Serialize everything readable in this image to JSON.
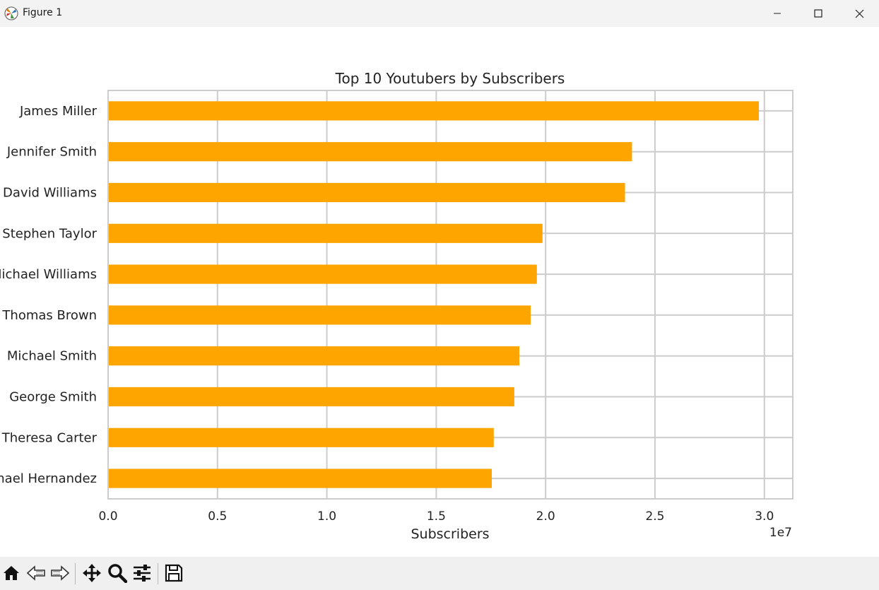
{
  "window": {
    "title": "Figure 1"
  },
  "toolbar": {
    "buttons": [
      "home-icon",
      "back-arrow-icon",
      "forward-arrow-icon",
      "pan-icon",
      "zoom-icon",
      "configure-subplots-icon",
      "save-icon"
    ]
  },
  "colors": {
    "bar": "#ffa500",
    "grid": "#cccccc",
    "spine": "#cccccc"
  },
  "chart_data": {
    "type": "bar",
    "orientation": "horizontal",
    "title": "Top 10 Youtubers by Subscribers",
    "xlabel": "Subscribers",
    "ylabel": "",
    "x_offset_label": "1e7",
    "categories": [
      "James Miller",
      "Jennifer Smith",
      "David Williams",
      "Stephen Taylor",
      "Michael Williams",
      "Thomas Brown",
      "Michael Smith",
      "George Smith",
      "Theresa Carter",
      "Michael Hernandez"
    ],
    "values": [
      29750000,
      23950000,
      23630000,
      19860000,
      19600000,
      19320000,
      18800000,
      18570000,
      17630000,
      17540000
    ],
    "xlim": [
      0,
      31300000
    ],
    "xticks": [
      0,
      5000000,
      10000000,
      15000000,
      20000000,
      25000000,
      30000000
    ],
    "xtick_labels": [
      "0.0",
      "0.5",
      "1.0",
      "1.5",
      "2.0",
      "2.5",
      "3.0"
    ],
    "grid": true
  }
}
